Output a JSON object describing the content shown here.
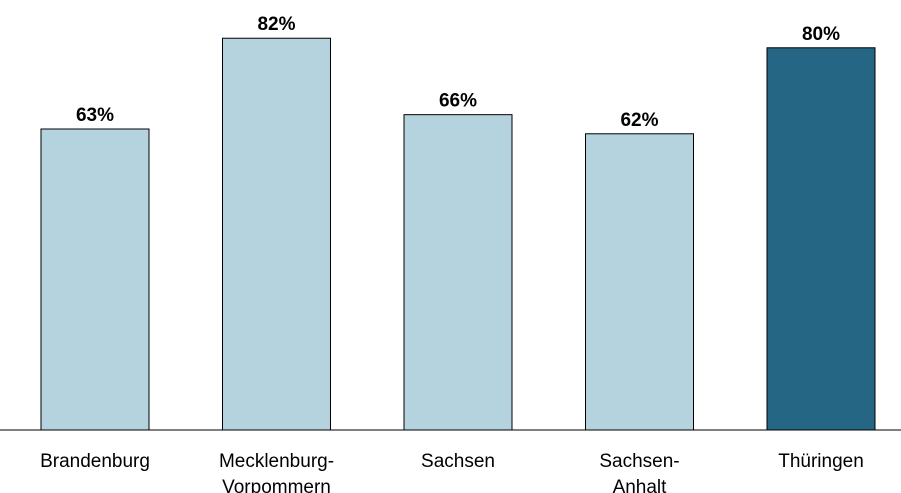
{
  "chart_data": {
    "type": "bar",
    "categories": [
      "Brandenburg",
      "Mecklenburg-Vorpommern",
      "Sachsen",
      "Sachsen-Anhalt",
      "Thüringen"
    ],
    "values": [
      63,
      82,
      66,
      62,
      80
    ],
    "value_labels": [
      "63%",
      "82%",
      "66%",
      "62%",
      "80%"
    ],
    "colors": [
      "#b4d3de",
      "#b4d3de",
      "#b4d3de",
      "#b4d3de",
      "#246683"
    ],
    "ylim": [
      0,
      90
    ]
  }
}
